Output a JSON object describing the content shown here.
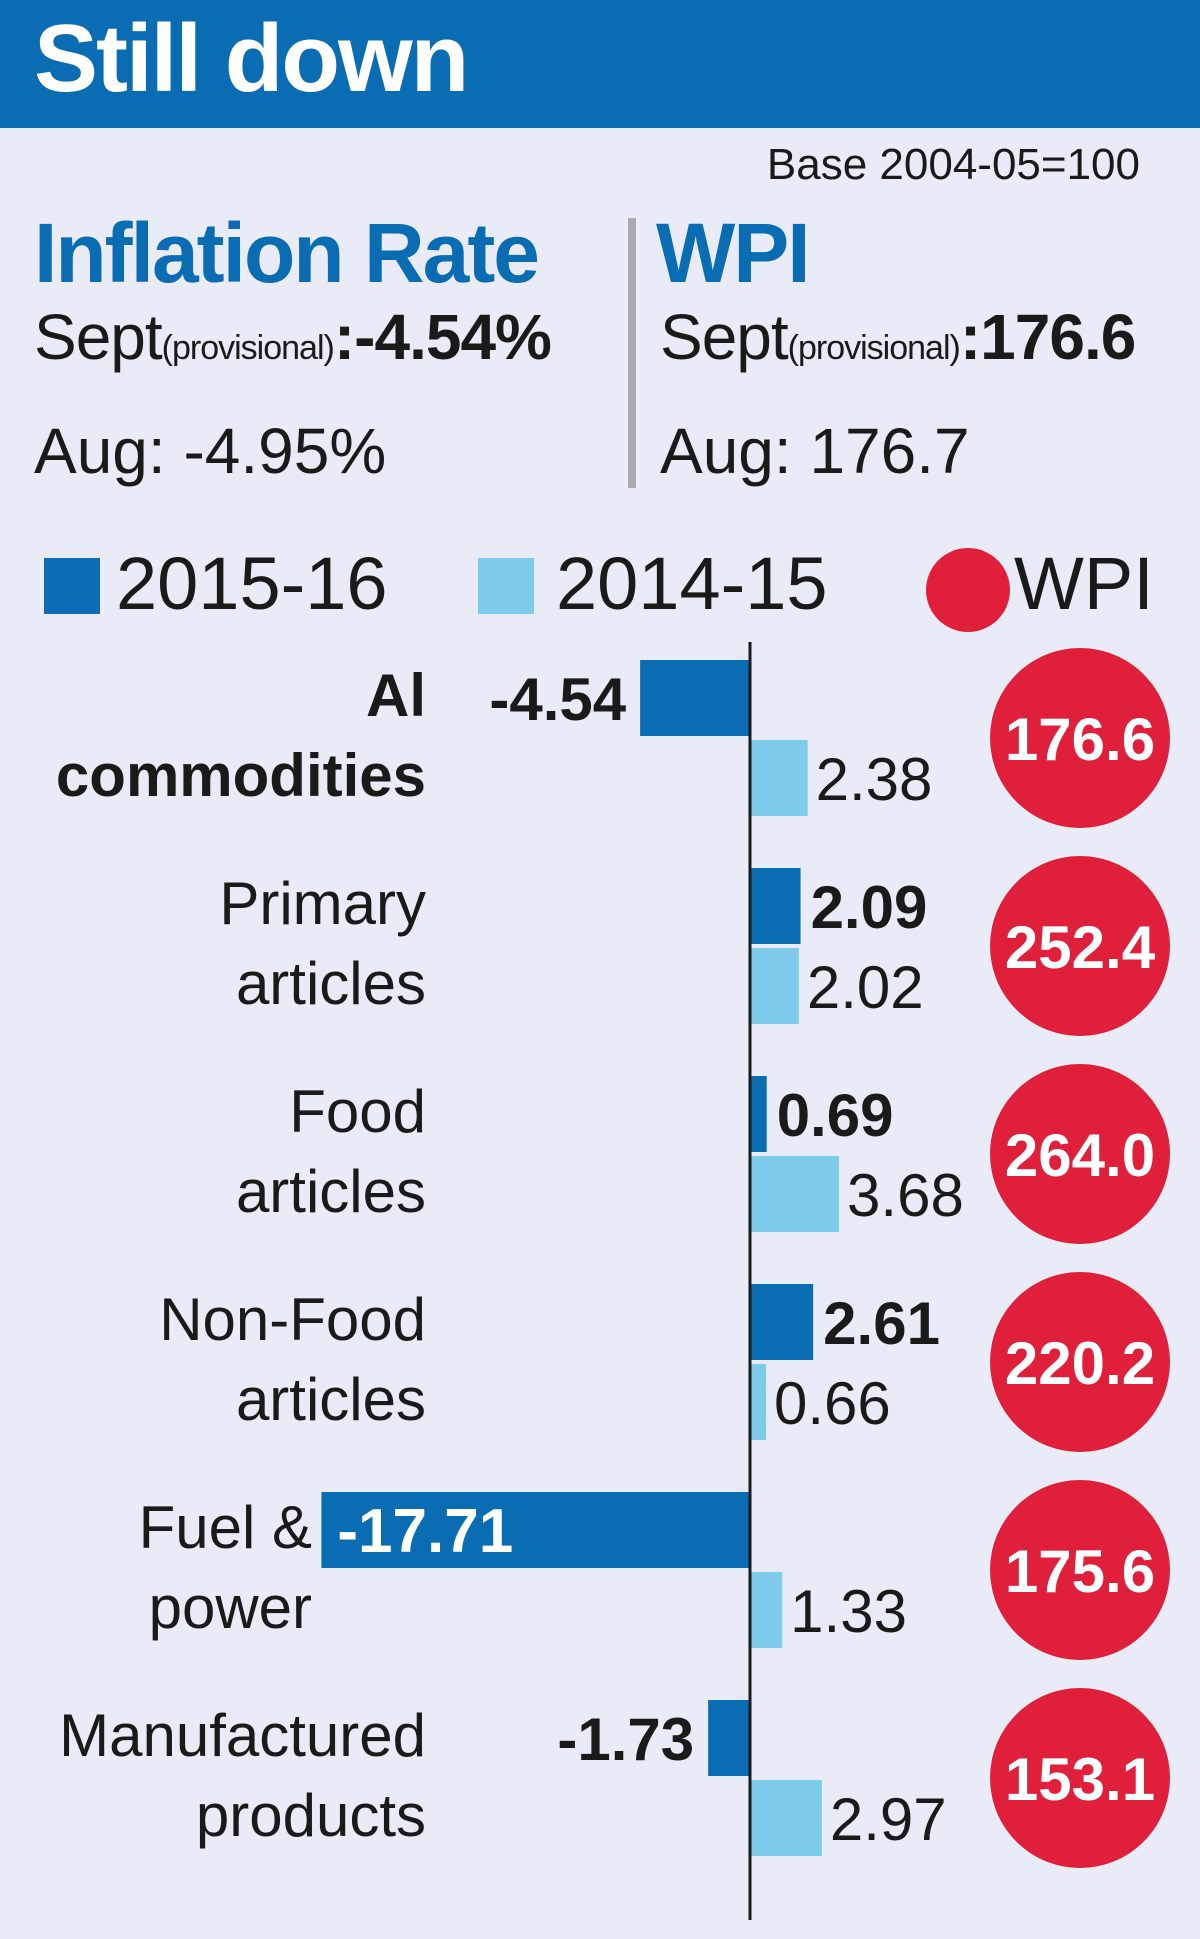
{
  "header": {
    "title": "Still down",
    "base_note": "Base 2004-05=100"
  },
  "inflation_panel": {
    "title": "Inflation Rate",
    "sept_label": "Sept",
    "sept_qualifier": "(provisional)",
    "sept_value": ":-4.54%",
    "aug_text": "Aug: -4.95%"
  },
  "wpi_panel": {
    "title": "WPI",
    "sept_label": "Sept",
    "sept_qualifier": "(provisional)",
    "sept_value": ":176.6",
    "aug_text": "Aug: 176.7"
  },
  "legend": {
    "series_a": "2015-16",
    "series_b": "2014-15",
    "wpi": "WPI"
  },
  "colors": {
    "header": "#0a6cb3",
    "series_2015_16": "#0a6cb3",
    "series_2014_15": "#7fcbec",
    "wpi_circle": "#e0203b",
    "background": "#e9ecf6"
  },
  "chart_data": {
    "type": "bar",
    "orientation": "horizontal",
    "categories": [
      [
        "Al",
        "commodities"
      ],
      [
        "Primary",
        "articles"
      ],
      [
        "Food",
        "articles"
      ],
      [
        "Non-Food",
        "articles"
      ],
      [
        "Fuel &",
        "power"
      ],
      [
        "Manufactured",
        "products"
      ]
    ],
    "series": [
      {
        "name": "2015-16",
        "values": [
          -4.54,
          2.09,
          0.69,
          2.61,
          -17.71,
          -1.73
        ],
        "labels": [
          "-4.54",
          "2.09",
          "0.69",
          "2.61",
          "-17.71",
          "-1.73"
        ]
      },
      {
        "name": "2014-15",
        "values": [
          2.38,
          2.02,
          3.68,
          0.66,
          1.33,
          2.97
        ],
        "labels": [
          "2.38",
          "2.02",
          "3.68",
          "0.66",
          "1.33",
          "2.97"
        ]
      }
    ],
    "wpi": [
      176.6,
      252.4,
      264.0,
      220.2,
      175.6,
      153.1
    ],
    "wpi_labels": [
      "176.6",
      "252.4",
      "264.0",
      "220.2",
      "175.6",
      "153.1"
    ]
  }
}
